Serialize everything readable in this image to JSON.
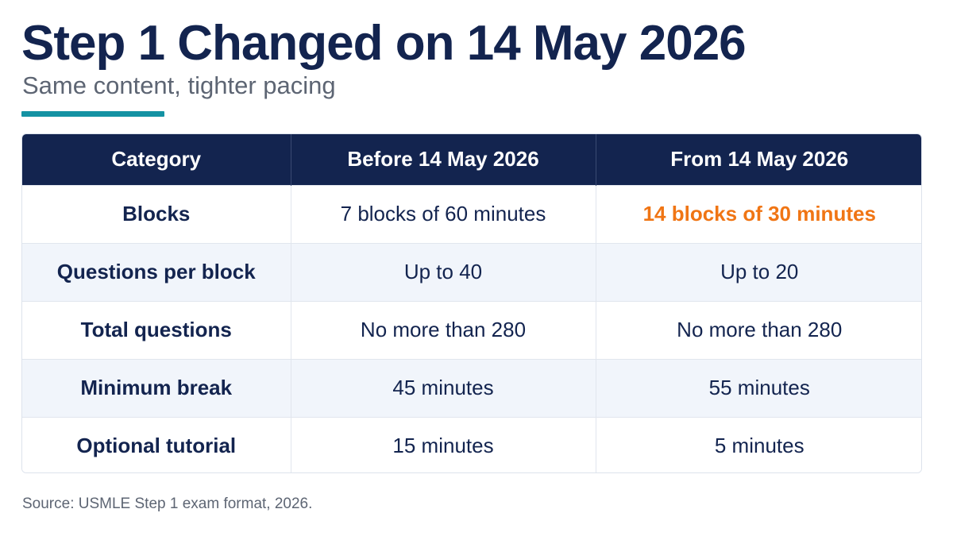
{
  "title": "Step 1 Changed on 14 May 2026",
  "subtitle": "Same content, tighter pacing",
  "colors": {
    "title": "#13244f",
    "accent_bar": "#1492a3",
    "header_bg": "#13244f",
    "highlight": "#f07514",
    "alt_row_bg": "#f1f5fb"
  },
  "table": {
    "headers": [
      "Category",
      "Before 14 May 2026",
      "From 14 May 2026"
    ],
    "rows": [
      [
        "Blocks",
        "7 blocks of 60 minutes",
        "14 blocks of 30 minutes"
      ],
      [
        "Questions per block",
        "Up to 40",
        "Up to 20"
      ],
      [
        "Total questions",
        "No more than 280",
        "No more than 280"
      ],
      [
        "Minimum break",
        "45 minutes",
        "55 minutes"
      ],
      [
        "Optional tutorial",
        "15 minutes",
        "5 minutes"
      ]
    ]
  },
  "source": "Source: USMLE Step 1 exam format, 2026."
}
